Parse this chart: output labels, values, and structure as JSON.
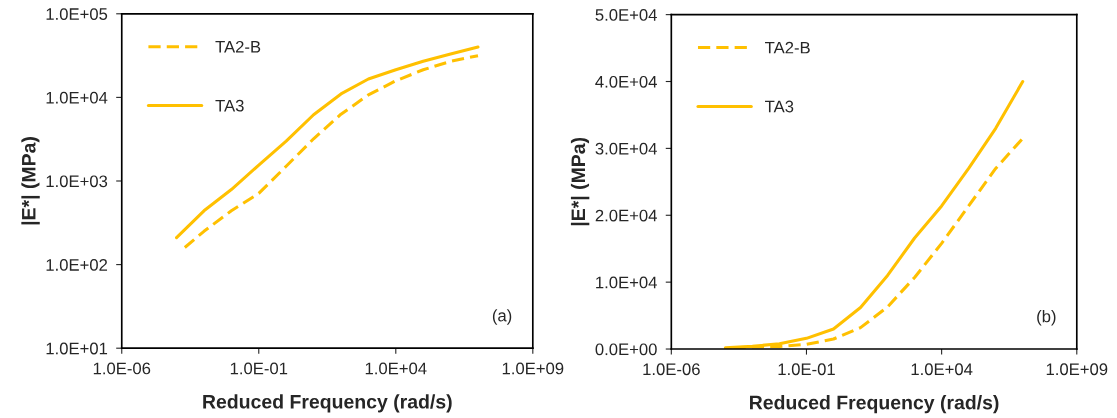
{
  "chart_data": [
    {
      "type": "line",
      "xlabel": "Reduced Frequency (rad/s)",
      "ylabel": "|E*| (MPa)",
      "log": "xy",
      "legend": "top left",
      "grid": false,
      "annotations": [
        "(a)"
      ],
      "xlim": [
        1e-06,
        1000000000.0
      ],
      "xticks": [
        {
          "value": 1e-06,
          "label": "1.0E-06"
        },
        {
          "value": 0.1,
          "label": "1.0E-01"
        },
        {
          "value": 10000,
          "label": "1.0E+04"
        },
        {
          "value": 1000000000.0,
          "label": "1.0E+09"
        }
      ],
      "ylim": [
        10,
        100000
      ],
      "yticks": [
        {
          "value": 10,
          "label": "1.0E+01"
        },
        {
          "value": 100,
          "label": "1.0E+02"
        },
        {
          "value": 1000,
          "label": "1.0E+03"
        },
        {
          "value": 10000,
          "label": "1.0E+04"
        },
        {
          "value": 100000,
          "label": "1.0E+05"
        }
      ],
      "series": [
        {
          "name": "TA2-B",
          "color": "#ffc000",
          "line_style": "dashed",
          "x": [
            0.0002,
            0.001,
            0.01,
            0.1,
            1,
            10,
            100,
            1000,
            10000,
            100000,
            1000000,
            10000000
          ],
          "values": [
            160,
            250,
            440,
            710,
            1500,
            3200,
            6300,
            10700,
            15800,
            21400,
            27000,
            31500
          ]
        },
        {
          "name": "TA3",
          "color": "#ffc000",
          "line_style": "solid",
          "x": [
            0.0001,
            0.001,
            0.01,
            0.1,
            1,
            10,
            100,
            1000,
            10000,
            100000,
            1000000,
            10000000
          ],
          "values": [
            210,
            440,
            790,
            1550,
            3000,
            6200,
            11000,
            16600,
            21400,
            27000,
            33000,
            40000
          ]
        }
      ]
    },
    {
      "type": "line",
      "xlabel": "Reduced Frequency (rad/s)",
      "ylabel": "|E*| (MPa)",
      "log": "x",
      "legend": "top left",
      "grid": false,
      "annotations": [
        "(b)"
      ],
      "xlim": [
        1e-06,
        1000000000.0
      ],
      "xticks": [
        {
          "value": 1e-06,
          "label": "1.0E-06"
        },
        {
          "value": 0.1,
          "label": "1.0E-01"
        },
        {
          "value": 10000,
          "label": "1.0E+04"
        },
        {
          "value": 1000000000.0,
          "label": "1.0E+09"
        }
      ],
      "ylim": [
        0,
        50000
      ],
      "yticks": [
        {
          "value": 0,
          "label": "0.0E+00"
        },
        {
          "value": 10000,
          "label": "1.0E+04"
        },
        {
          "value": 20000,
          "label": "2.0E+04"
        },
        {
          "value": 30000,
          "label": "3.0E+04"
        },
        {
          "value": 40000,
          "label": "4.0E+04"
        },
        {
          "value": 50000,
          "label": "5.0E+04"
        }
      ],
      "series": [
        {
          "name": "TA2-B",
          "color": "#ffc000",
          "line_style": "dashed",
          "x": [
            0.0002,
            0.001,
            0.01,
            0.1,
            1,
            10,
            100,
            1000,
            10000,
            100000,
            1000000,
            10000000
          ],
          "values": [
            200,
            300,
            400,
            700,
            1500,
            3200,
            6300,
            10700,
            15800,
            21400,
            27000,
            31500
          ]
        },
        {
          "name": "TA3",
          "color": "#ffc000",
          "line_style": "solid",
          "x": [
            0.0001,
            0.001,
            0.01,
            0.1,
            1,
            10,
            100,
            1000,
            10000,
            100000,
            1000000,
            10000000
          ],
          "values": [
            200,
            400,
            800,
            1600,
            3000,
            6200,
            11000,
            16600,
            21400,
            27000,
            33000,
            40000
          ]
        }
      ]
    }
  ]
}
